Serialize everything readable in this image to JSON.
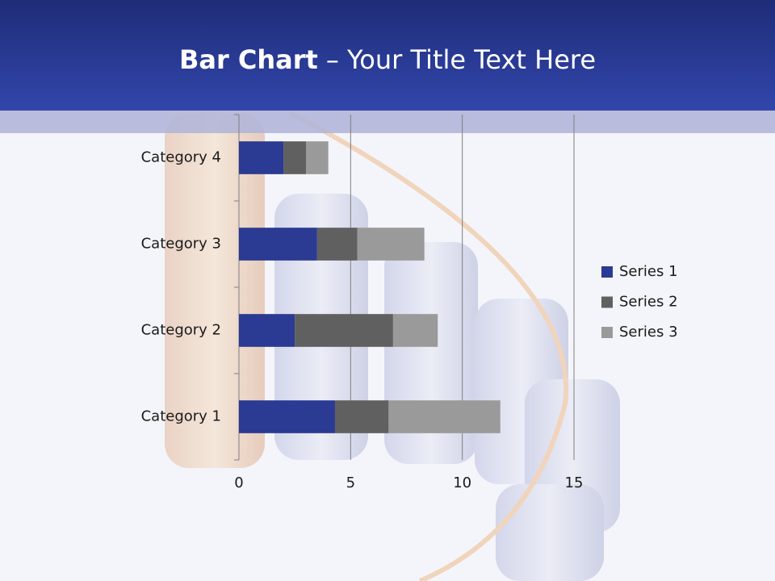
{
  "header": {
    "title_bold": "Bar Chart",
    "title_rest": "– Your Title Text Here"
  },
  "chart_data": {
    "type": "bar",
    "orientation": "horizontal",
    "stacked": true,
    "categories": [
      "Category 1",
      "Category 2",
      "Category 3",
      "Category 4"
    ],
    "series": [
      {
        "name": "Series 1",
        "color": "#2b3a92",
        "values": [
          4.3,
          2.5,
          3.5,
          2.0
        ]
      },
      {
        "name": "Series 2",
        "color": "#606060",
        "values": [
          2.4,
          4.4,
          1.8,
          1.0
        ]
      },
      {
        "name": "Series 3",
        "color": "#9a9a9a",
        "values": [
          5.0,
          2.0,
          3.0,
          1.0
        ]
      }
    ],
    "xlim": [
      0,
      15
    ],
    "xticks": [
      0,
      5,
      10,
      15
    ],
    "grid": true,
    "legend": "right"
  }
}
